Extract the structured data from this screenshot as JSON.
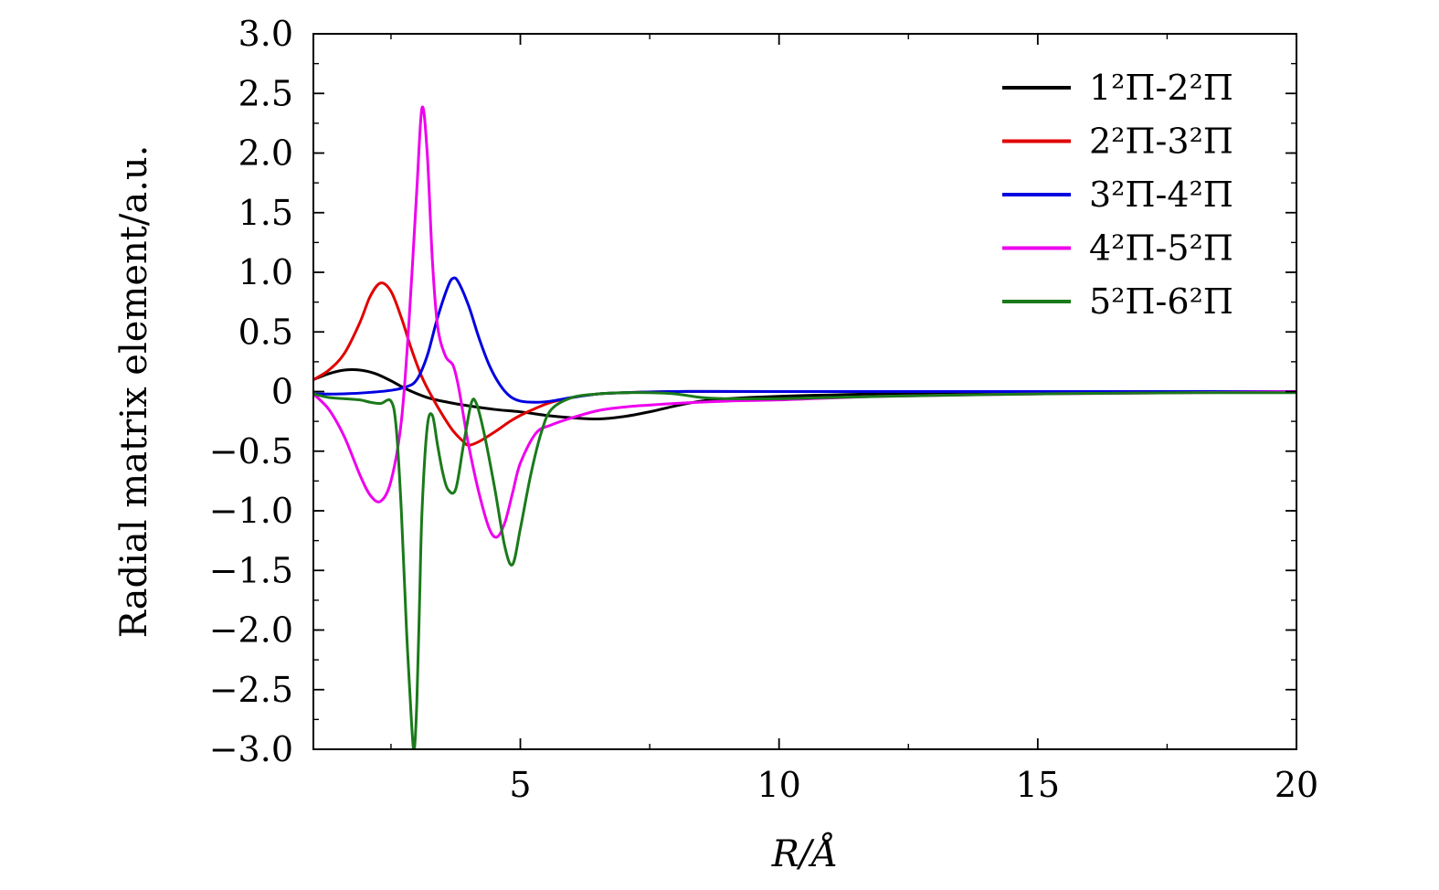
{
  "chart_data": {
    "type": "line",
    "xlabel": "R/Å",
    "ylabel": "Radial matrix element/a.u.",
    "xlim": [
      1,
      20
    ],
    "ylim": [
      -3.0,
      3.0
    ],
    "x_ticks": [
      5,
      10,
      15,
      20
    ],
    "x_tick_labels": [
      "5",
      "10",
      "15",
      "20"
    ],
    "x_minor_step": 2.5,
    "y_ticks": [
      3.0,
      2.5,
      2.0,
      1.5,
      1.0,
      0.5,
      0,
      -0.5,
      -1.0,
      -1.5,
      -2.0,
      -2.5,
      -3.0
    ],
    "y_tick_labels": [
      "3.0",
      "2.5",
      "2.0",
      "1.5",
      "1.0",
      "0.5",
      "0",
      "−0.5",
      "−1.0",
      "−1.5",
      "−2.0",
      "−2.5",
      "−3.0"
    ],
    "y_minor_step": 0.25,
    "grid": false,
    "legend_position": "top-right",
    "series": [
      {
        "name": "1²Π-2²Π",
        "color": "#000000",
        "x": [
          1.0,
          1.3,
          1.6,
          1.9,
          2.2,
          2.5,
          2.8,
          3.2,
          3.6,
          4.0,
          4.5,
          5.0,
          5.5,
          6.0,
          6.5,
          7.0,
          7.5,
          8.0,
          8.5,
          9.0,
          10.0,
          12.0,
          15.0,
          18.0,
          20.0
        ],
        "y": [
          0.1,
          0.15,
          0.18,
          0.18,
          0.15,
          0.09,
          0.02,
          -0.05,
          -0.09,
          -0.12,
          -0.15,
          -0.17,
          -0.2,
          -0.22,
          -0.23,
          -0.21,
          -0.17,
          -0.12,
          -0.08,
          -0.06,
          -0.04,
          -0.02,
          -0.01,
          0.0,
          0.0
        ]
      },
      {
        "name": "2²Π-3²Π",
        "color": "#e00000",
        "x": [
          1.0,
          1.3,
          1.6,
          1.9,
          2.1,
          2.3,
          2.5,
          2.7,
          2.9,
          3.1,
          3.3,
          3.5,
          3.7,
          3.9,
          4.0,
          4.2,
          4.5,
          4.8,
          5.0,
          5.3,
          5.6,
          6.0,
          6.5,
          7.0,
          8.0,
          10.0,
          15.0,
          20.0
        ],
        "y": [
          0.1,
          0.18,
          0.32,
          0.58,
          0.8,
          0.91,
          0.84,
          0.62,
          0.35,
          0.12,
          -0.05,
          -0.2,
          -0.33,
          -0.42,
          -0.45,
          -0.42,
          -0.34,
          -0.25,
          -0.2,
          -0.14,
          -0.09,
          -0.05,
          -0.02,
          -0.01,
          0.0,
          0.0,
          0.0,
          0.0
        ]
      },
      {
        "name": "3²Π-4²Π",
        "color": "#0000e0",
        "x": [
          1.0,
          1.5,
          2.0,
          2.5,
          2.8,
          3.0,
          3.2,
          3.4,
          3.6,
          3.7,
          3.8,
          4.0,
          4.2,
          4.4,
          4.6,
          4.8,
          5.0,
          5.3,
          5.6,
          6.0,
          6.5,
          7.0,
          8.0,
          10.0,
          15.0,
          20.0
        ],
        "y": [
          -0.02,
          -0.02,
          -0.01,
          0.01,
          0.04,
          0.1,
          0.3,
          0.62,
          0.88,
          0.95,
          0.92,
          0.72,
          0.45,
          0.22,
          0.06,
          -0.04,
          -0.08,
          -0.09,
          -0.08,
          -0.05,
          -0.02,
          -0.01,
          0.0,
          0.0,
          0.0,
          0.0
        ]
      },
      {
        "name": "4²Π-5²Π",
        "color": "#ee00ee",
        "x": [
          1.0,
          1.3,
          1.6,
          1.9,
          2.1,
          2.3,
          2.5,
          2.7,
          2.85,
          3.0,
          3.1,
          3.2,
          3.3,
          3.4,
          3.55,
          3.7,
          3.8,
          3.9,
          4.0,
          4.2,
          4.4,
          4.55,
          4.7,
          4.85,
          5.0,
          5.3,
          5.6,
          6.0,
          6.5,
          7.0,
          8.0,
          9.0,
          10.0,
          12.0,
          15.0,
          18.0,
          20.0
        ],
        "y": [
          -0.02,
          -0.15,
          -0.38,
          -0.7,
          -0.87,
          -0.92,
          -0.75,
          -0.25,
          0.6,
          1.7,
          2.38,
          2.0,
          1.1,
          0.55,
          0.3,
          0.22,
          0.05,
          -0.2,
          -0.45,
          -0.85,
          -1.15,
          -1.22,
          -1.1,
          -0.85,
          -0.6,
          -0.35,
          -0.28,
          -0.22,
          -0.16,
          -0.13,
          -0.1,
          -0.08,
          -0.07,
          -0.04,
          -0.02,
          -0.01,
          0.0
        ]
      },
      {
        "name": "5²Π-6²Π",
        "color": "#1a7a1a",
        "x": [
          1.0,
          1.3,
          1.6,
          1.9,
          2.1,
          2.3,
          2.5,
          2.6,
          2.7,
          2.8,
          2.9,
          2.95,
          3.0,
          3.05,
          3.1,
          3.2,
          3.3,
          3.4,
          3.5,
          3.6,
          3.75,
          3.9,
          4.05,
          4.15,
          4.3,
          4.5,
          4.7,
          4.85,
          5.0,
          5.2,
          5.4,
          5.6,
          6.0,
          6.5,
          7.0,
          7.5,
          8.0,
          8.5,
          9.0,
          10.0,
          12.0,
          15.0,
          18.0,
          20.0
        ],
        "y": [
          -0.02,
          -0.05,
          -0.06,
          -0.07,
          -0.09,
          -0.1,
          -0.08,
          -0.3,
          -1.0,
          -2.0,
          -2.8,
          -3.0,
          -2.6,
          -1.8,
          -1.0,
          -0.3,
          -0.2,
          -0.45,
          -0.68,
          -0.82,
          -0.82,
          -0.45,
          -0.1,
          -0.1,
          -0.35,
          -0.8,
          -1.3,
          -1.45,
          -1.15,
          -0.7,
          -0.35,
          -0.15,
          -0.05,
          -0.02,
          -0.01,
          -0.01,
          -0.02,
          -0.05,
          -0.06,
          -0.06,
          -0.04,
          -0.02,
          -0.01,
          -0.01
        ]
      }
    ]
  }
}
